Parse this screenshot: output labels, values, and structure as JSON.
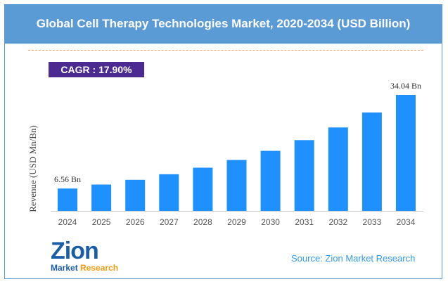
{
  "header": {
    "title": "Global Cell Therapy Technologies Market, 2020-2034 (USD Billion)"
  },
  "cagr": "CAGR : 17.90%",
  "source": "Source: Zion Market Research",
  "logo": {
    "text": "Zion",
    "sub1": "Market",
    "sub2": "Research"
  },
  "colors": {
    "bar": "#1e90ff",
    "header": "#5b9bd5",
    "cagr": "#4b2a91"
  },
  "chart_data": {
    "type": "bar",
    "title": "Global Cell Therapy Technologies Market, 2020-2034 (USD Billion)",
    "ylabel": "Revenue (USD Mn/Bn)",
    "categories": [
      "2024",
      "2025",
      "2026",
      "2027",
      "2028",
      "2029",
      "2030",
      "2031",
      "2032",
      "2033",
      "2034"
    ],
    "values": [
      6.56,
      7.73,
      9.12,
      10.75,
      12.68,
      14.94,
      17.62,
      20.77,
      24.49,
      28.87,
      34.04
    ],
    "data_labels": {
      "0": "6.56 Bn",
      "10": "34.04 Bn"
    },
    "ylim": [
      0,
      36
    ],
    "grid": false
  }
}
